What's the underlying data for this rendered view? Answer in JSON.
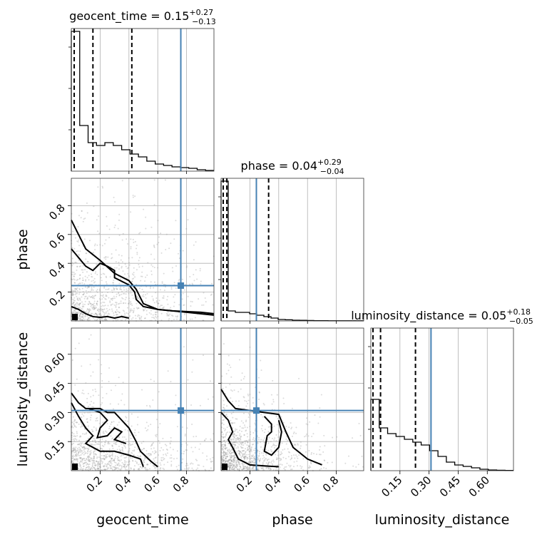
{
  "chart_data": {
    "type": "corner",
    "parameters": [
      "geocent_time",
      "phase",
      "luminosity_distance"
    ],
    "axis_labels": {
      "geocent_time": "geocent_time",
      "phase": "phase",
      "luminosity_distance": "luminosity_distance"
    },
    "titles": [
      {
        "name": "geocent_time",
        "prefix": "geocent_time = ",
        "median": "0.15",
        "plus": "+0.27",
        "minus": "−0.13"
      },
      {
        "name": "phase",
        "prefix": "phase = ",
        "median": "0.04",
        "plus": "+0.29",
        "minus": "−0.04"
      },
      {
        "name": "luminosity_distance",
        "prefix": "luminosity_distance = ",
        "median": "0.05",
        "plus": "+0.18",
        "minus": "−0.05"
      }
    ],
    "ranges": {
      "geocent_time": [
        0.0,
        0.99
      ],
      "phase": [
        0.0,
        0.99
      ],
      "luminosity_distance": [
        0.0,
        0.735
      ]
    },
    "ticks": {
      "geocent_time": [
        {
          "v": 0.2,
          "label": "0.2"
        },
        {
          "v": 0.4,
          "label": "0.4"
        },
        {
          "v": 0.6,
          "label": "0.6"
        },
        {
          "v": 0.8,
          "label": "0.8"
        }
      ],
      "phase": [
        {
          "v": 0.2,
          "label": "0.2"
        },
        {
          "v": 0.4,
          "label": "0.4"
        },
        {
          "v": 0.6,
          "label": "0.6"
        },
        {
          "v": 0.8,
          "label": "0.8"
        }
      ],
      "luminosity_distance": [
        {
          "v": 0.15,
          "label": "0.15"
        },
        {
          "v": 0.3,
          "label": "0.30"
        },
        {
          "v": 0.45,
          "label": "0.45"
        },
        {
          "v": 0.6,
          "label": "0.60"
        }
      ]
    },
    "truths": {
      "geocent_time": 0.76,
      "phase": 0.245,
      "luminosity_distance": 0.31
    },
    "quantiles": {
      "geocent_time": [
        0.02,
        0.15,
        0.42
      ],
      "phase": [
        0.0,
        0.04,
        0.33
      ],
      "luminosity_distance": [
        0.0,
        0.05,
        0.23
      ]
    },
    "histograms": {
      "geocent_time": [
        0.98,
        0.32,
        0.2,
        0.18,
        0.2,
        0.18,
        0.15,
        0.12,
        0.1,
        0.07,
        0.05,
        0.04,
        0.03,
        0.025,
        0.02,
        0.01,
        0.005
      ],
      "phase": [
        0.98,
        0.07,
        0.06,
        0.06,
        0.05,
        0.04,
        0.03,
        0.02,
        0.01,
        0.008,
        0.005,
        0.004,
        0.003,
        0.002,
        0.002,
        0.001,
        0.001,
        0.001,
        0.001,
        0.001
      ],
      "luminosity_distance": [
        0.5,
        0.3,
        0.26,
        0.24,
        0.22,
        0.2,
        0.18,
        0.14,
        0.1,
        0.06,
        0.04,
        0.03,
        0.02,
        0.01,
        0.005,
        0.003,
        0.002
      ]
    },
    "contours": {
      "phase_vs_geocent_time": [
        [
          [
            0.0,
            0.7
          ],
          [
            0.05,
            0.6
          ],
          [
            0.1,
            0.5
          ],
          [
            0.2,
            0.42
          ],
          [
            0.3,
            0.33
          ],
          [
            0.4,
            0.28
          ],
          [
            0.45,
            0.22
          ],
          [
            0.5,
            0.12
          ],
          [
            0.6,
            0.08
          ],
          [
            0.7,
            0.07
          ],
          [
            0.8,
            0.065
          ],
          [
            0.9,
            0.06
          ],
          [
            0.99,
            0.05
          ]
        ],
        [
          [
            0.0,
            0.5
          ],
          [
            0.05,
            0.44
          ],
          [
            0.1,
            0.38
          ],
          [
            0.15,
            0.35
          ],
          [
            0.2,
            0.4
          ],
          [
            0.25,
            0.38
          ],
          [
            0.3,
            0.35
          ],
          [
            0.3,
            0.3
          ],
          [
            0.4,
            0.25
          ],
          [
            0.44,
            0.2
          ],
          [
            0.45,
            0.15
          ],
          [
            0.5,
            0.1
          ],
          [
            0.6,
            0.08
          ],
          [
            0.7,
            0.07
          ],
          [
            0.8,
            0.06
          ],
          [
            0.99,
            0.04
          ]
        ],
        [
          [
            0.0,
            0.1
          ],
          [
            0.05,
            0.08
          ],
          [
            0.1,
            0.05
          ],
          [
            0.15,
            0.03
          ],
          [
            0.2,
            0.025
          ],
          [
            0.25,
            0.03
          ],
          [
            0.3,
            0.02
          ],
          [
            0.35,
            0.03
          ],
          [
            0.4,
            0.02
          ]
        ]
      ],
      "luminosity_distance_vs_geocent_time": [
        [
          [
            0.0,
            0.4
          ],
          [
            0.05,
            0.35
          ],
          [
            0.1,
            0.32
          ],
          [
            0.2,
            0.32
          ],
          [
            0.25,
            0.3
          ],
          [
            0.3,
            0.3
          ],
          [
            0.35,
            0.26
          ],
          [
            0.4,
            0.22
          ],
          [
            0.45,
            0.15
          ],
          [
            0.48,
            0.1
          ],
          [
            0.55,
            0.05
          ],
          [
            0.6,
            0.02
          ]
        ],
        [
          [
            0.0,
            0.35
          ],
          [
            0.05,
            0.28
          ],
          [
            0.1,
            0.22
          ],
          [
            0.15,
            0.18
          ],
          [
            0.1,
            0.14
          ],
          [
            0.2,
            0.1
          ],
          [
            0.3,
            0.1
          ],
          [
            0.4,
            0.08
          ],
          [
            0.48,
            0.06
          ],
          [
            0.5,
            0.02
          ]
        ],
        [
          [
            0.12,
            0.32
          ],
          [
            0.2,
            0.3
          ],
          [
            0.25,
            0.26
          ],
          [
            0.2,
            0.22
          ],
          [
            0.18,
            0.17
          ],
          [
            0.25,
            0.18
          ],
          [
            0.3,
            0.22
          ],
          [
            0.35,
            0.2
          ],
          [
            0.3,
            0.16
          ],
          [
            0.38,
            0.14
          ]
        ]
      ],
      "luminosity_distance_vs_phase": [
        [
          [
            0.0,
            0.42
          ],
          [
            0.05,
            0.36
          ],
          [
            0.1,
            0.32
          ],
          [
            0.2,
            0.31
          ],
          [
            0.3,
            0.3
          ],
          [
            0.4,
            0.29
          ],
          [
            0.45,
            0.2
          ],
          [
            0.5,
            0.12
          ],
          [
            0.6,
            0.06
          ],
          [
            0.7,
            0.03
          ]
        ],
        [
          [
            0.0,
            0.3
          ],
          [
            0.05,
            0.26
          ],
          [
            0.08,
            0.2
          ],
          [
            0.05,
            0.16
          ],
          [
            0.08,
            0.12
          ],
          [
            0.12,
            0.06
          ],
          [
            0.2,
            0.03
          ],
          [
            0.4,
            0.02
          ]
        ],
        [
          [
            0.3,
            0.28
          ],
          [
            0.35,
            0.24
          ],
          [
            0.35,
            0.2
          ],
          [
            0.32,
            0.18
          ],
          [
            0.3,
            0.1
          ],
          [
            0.35,
            0.08
          ],
          [
            0.4,
            0.12
          ],
          [
            0.42,
            0.2
          ],
          [
            0.4,
            0.26
          ]
        ]
      ]
    },
    "colors": {
      "truth": "#4682b4",
      "line": "#000000",
      "points": "#999999",
      "grid": "#b0b0b0"
    },
    "grid": true
  }
}
